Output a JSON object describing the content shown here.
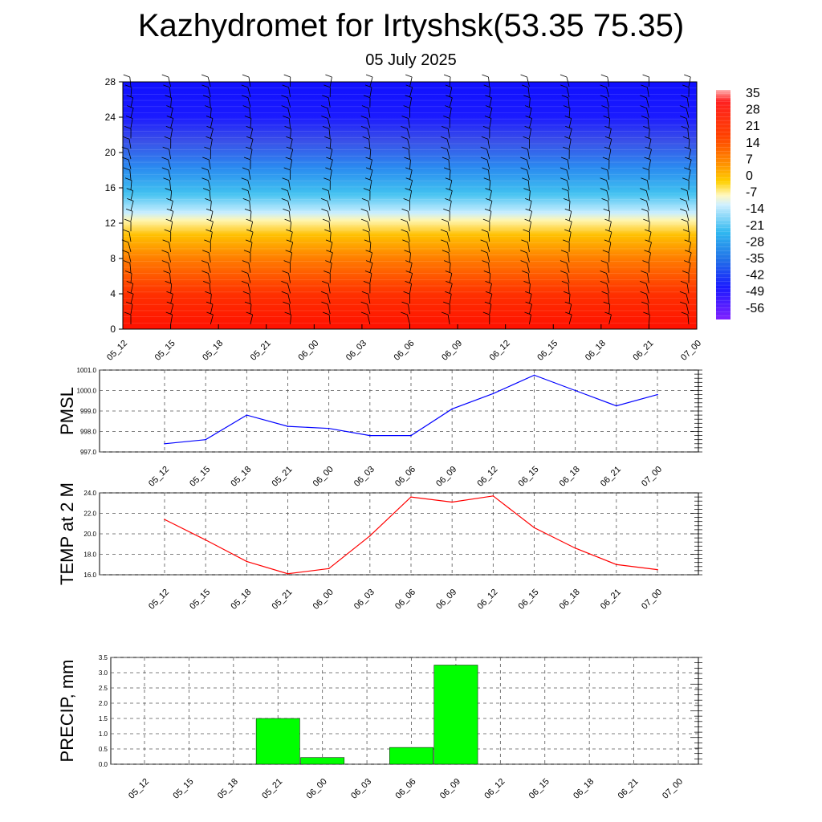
{
  "header": {
    "title": "Kazhydromet for Irtyshsk(53.35 75.35)",
    "subtitle": "05 July 2025"
  },
  "chart_data": [
    {
      "type": "heatmap",
      "title": "",
      "xlabel": "",
      "ylabel": "",
      "x_ticks": [
        "05_12",
        "05_15",
        "05_18",
        "05_21",
        "06_00",
        "06_03",
        "06_06",
        "06_09",
        "06_12",
        "06_15",
        "06_18",
        "06_21",
        "07_00"
      ],
      "y_ticks": [
        0,
        4,
        8,
        12,
        16,
        20,
        24,
        28
      ],
      "ylim": [
        0,
        28
      ],
      "colorbar_labels": [
        "35",
        "28",
        "21",
        "14",
        "7",
        "0",
        "-7",
        "-14",
        "-21",
        "-28",
        "-35",
        "-42",
        "-49",
        "-56"
      ],
      "colors": {
        "warm": "#ff1a00",
        "orange": "#ff8c00",
        "yellow": "#fff0a0",
        "cyan": "#38c8f0",
        "blue": "#1a1aff",
        "violet": "#8000ff",
        "barb": "#000000"
      },
      "wind_barbs": "shown"
    },
    {
      "type": "line",
      "ylabel": "PMSL",
      "categories": [
        "05_12",
        "05_15",
        "05_18",
        "05_21",
        "06_00",
        "06_03",
        "06_06",
        "06_09",
        "06_12",
        "06_15",
        "06_18",
        "06_21",
        "07_00"
      ],
      "values": [
        997.4,
        997.6,
        998.8,
        998.25,
        998.15,
        997.8,
        997.8,
        999.1,
        999.85,
        1000.75,
        1000.0,
        999.25,
        999.8
      ],
      "ylim": [
        997.0,
        1001.0
      ],
      "y_ticks": [
        "997.0",
        "998.0",
        "999.0",
        "1000.0",
        "1001.0"
      ],
      "color": "#0000ff",
      "grid": true
    },
    {
      "type": "line",
      "ylabel": "TEMP at 2 M",
      "categories": [
        "05_12",
        "05_15",
        "05_18",
        "05_21",
        "06_00",
        "06_03",
        "06_06",
        "06_09",
        "06_12",
        "06_15",
        "06_18",
        "06_21",
        "07_00"
      ],
      "values": [
        21.4,
        19.4,
        17.3,
        16.1,
        16.6,
        19.8,
        23.6,
        23.1,
        23.7,
        20.6,
        18.6,
        17.0,
        16.5
      ],
      "ylim": [
        16.0,
        24.0
      ],
      "y_ticks": [
        "16.0",
        "18.0",
        "20.0",
        "22.0",
        "24.0"
      ],
      "color": "#ff0000",
      "grid": true
    },
    {
      "type": "bar",
      "ylabel": "PRECIP, mm",
      "categories": [
        "05_12",
        "05_15",
        "05_18",
        "05_21",
        "06_00",
        "06_03",
        "06_06",
        "06_09",
        "06_12",
        "06_15",
        "06_18",
        "06_21",
        "07_00"
      ],
      "values": [
        0,
        0,
        0,
        1.5,
        0.22,
        0,
        0.55,
        3.25,
        0,
        0,
        0,
        0,
        0
      ],
      "ylim": [
        0,
        3.5
      ],
      "y_ticks": [
        "0.0",
        "0.5",
        "1.0",
        "1.5",
        "2.0",
        "2.5",
        "3.0",
        "3.5"
      ],
      "color": "#00ff00",
      "grid": true
    }
  ]
}
